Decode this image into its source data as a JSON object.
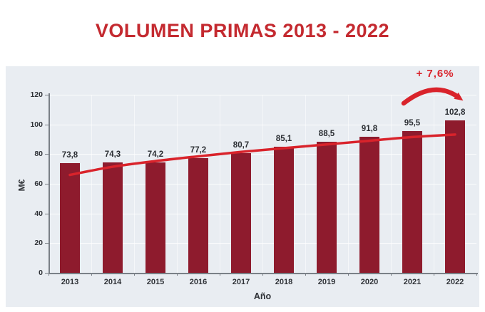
{
  "chart_data": {
    "type": "bar",
    "title": "VOLUMEN PRIMAS 2013 - 2022",
    "categories": [
      "2013",
      "2014",
      "2015",
      "2016",
      "2017",
      "2018",
      "2019",
      "2020",
      "2021",
      "2022"
    ],
    "values": [
      73.8,
      74.3,
      74.2,
      77.2,
      80.7,
      85.1,
      88.5,
      91.8,
      95.5,
      102.8
    ],
    "value_labels": [
      "73,8",
      "74,3",
      "74,2",
      "77,2",
      "80,7",
      "85,1",
      "88,5",
      "91,8",
      "95,5",
      "102,8"
    ],
    "trend_line": {
      "type": "line",
      "values": [
        66,
        71.5,
        75.3,
        78.5,
        81.5,
        84,
        86.5,
        89,
        91.5,
        93.2
      ]
    },
    "annotation": {
      "text": "+ 7,6%",
      "position": "above 2021-2022 bars"
    },
    "xlabel": "Año",
    "ylabel": "M€",
    "ylim": [
      0,
      120
    ],
    "ytick_step": 20,
    "yticks": [
      "0",
      "20",
      "40",
      "60",
      "80",
      "100",
      "120"
    ],
    "grid": true,
    "legend": "none",
    "colors": {
      "bar": "#8e1b2d",
      "trend_line": "#d9232b",
      "annotation": "#d9232b",
      "title": "#c42a30",
      "panel_background": "#e9edf2",
      "text": "#2f3237",
      "axis": "#7a8087"
    }
  }
}
